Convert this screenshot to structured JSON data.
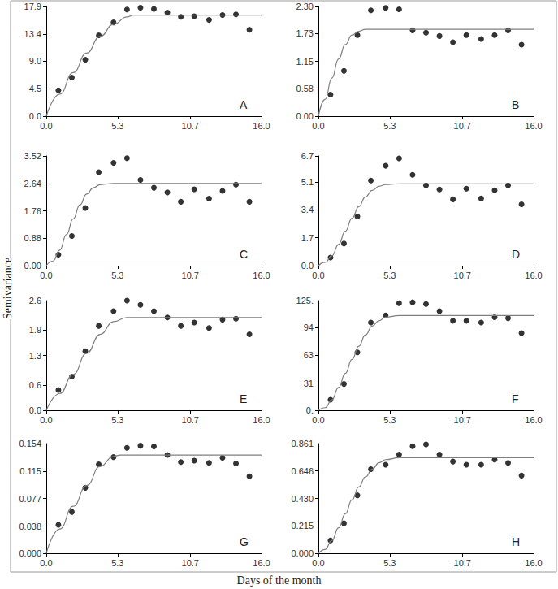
{
  "xlabel": "Days of the month",
  "ylabel": "Semivariance",
  "chart_data": [
    {
      "type": "scatter",
      "title": "A",
      "xlim": [
        0,
        16
      ],
      "xticks": [
        {
          "value": 0,
          "label": "0.0"
        },
        5.3,
        10.7,
        {
          "value": 16,
          "label": "16.0"
        }
      ],
      "ylim": [
        0,
        17.9
      ],
      "yticks": [
        {
          "value": 0,
          "label": "0.0"
        },
        4.5,
        {
          "value": 9,
          "label": "9.0"
        },
        13.4,
        17.9
      ],
      "series": [
        {
          "type": "scatter",
          "color": "#000000",
          "marker": "circle",
          "x": [
            0.9,
            1.9,
            2.9,
            3.9,
            5.0,
            6.0,
            7.0,
            8.0,
            9.0,
            10.0,
            11.0,
            12.1,
            13.1,
            14.1,
            15.1
          ],
          "values": [
            4.2,
            6.3,
            9.2,
            13.2,
            15.3,
            17.4,
            17.7,
            17.5,
            16.9,
            16.2,
            16.3,
            15.7,
            16.5,
            16.6,
            14.1
          ]
        },
        {
          "type": "line",
          "color": "#7f7f7f",
          "line_style": "solid",
          "x": [
            0,
            1,
            2,
            3,
            4,
            5,
            6,
            6.5,
            16
          ],
          "values": [
            0,
            3.6,
            7.1,
            10.3,
            13.0,
            15.0,
            16.2,
            16.5,
            16.5
          ]
        }
      ]
    },
    {
      "type": "scatter",
      "title": "B",
      "xlim": [
        0,
        16
      ],
      "xticks": [
        {
          "value": 0,
          "label": "0.0"
        },
        5.3,
        10.7,
        {
          "value": 16,
          "label": "16.0"
        }
      ],
      "ylim": [
        0,
        2.3
      ],
      "yticks": [
        {
          "value": 0,
          "label": "0.00"
        },
        0.58,
        1.15,
        1.73,
        {
          "value": 2.3,
          "label": "2.30"
        }
      ],
      "series": [
        {
          "type": "scatter",
          "color": "#000000",
          "marker": "circle",
          "x": [
            0.9,
            1.9,
            2.9,
            3.9,
            5.0,
            6.0,
            7.0,
            8.0,
            9.0,
            10.0,
            11.0,
            12.1,
            13.1,
            14.1,
            15.1
          ],
          "values": [
            0.45,
            0.95,
            1.7,
            2.22,
            2.27,
            2.24,
            1.8,
            1.75,
            1.68,
            1.55,
            1.7,
            1.62,
            1.7,
            1.8,
            1.5
          ]
        },
        {
          "type": "line",
          "color": "#7f7f7f",
          "line_style": "solid",
          "x": [
            0,
            0.5,
            1,
            1.5,
            2,
            2.5,
            3,
            3.5,
            16
          ],
          "values": [
            0,
            0.35,
            0.8,
            1.2,
            1.5,
            1.7,
            1.78,
            1.82,
            1.82
          ]
        }
      ]
    },
    {
      "type": "scatter",
      "title": "C",
      "xlim": [
        0,
        16
      ],
      "xticks": [
        {
          "value": 0,
          "label": "0.0"
        },
        5.3,
        10.7,
        {
          "value": 16,
          "label": "16.0"
        }
      ],
      "ylim": [
        0,
        3.52
      ],
      "yticks": [
        {
          "value": 0,
          "label": "0.00"
        },
        0.88,
        1.76,
        2.64,
        3.52
      ],
      "series": [
        {
          "type": "scatter",
          "color": "#000000",
          "marker": "circle",
          "x": [
            0.9,
            1.9,
            2.9,
            3.9,
            5.0,
            6.0,
            7.0,
            8.0,
            9.0,
            10.0,
            11.0,
            12.1,
            13.1,
            14.1,
            15.1
          ],
          "values": [
            0.35,
            0.95,
            1.85,
            3.0,
            3.3,
            3.45,
            2.75,
            2.5,
            2.35,
            2.05,
            2.45,
            2.15,
            2.4,
            2.6,
            2.05
          ]
        },
        {
          "type": "line",
          "color": "#7f7f7f",
          "line_style": "solid",
          "x": [
            0,
            0.5,
            1,
            1.5,
            2,
            2.5,
            3,
            3.5,
            4,
            5,
            16
          ],
          "values": [
            0,
            0.15,
            0.5,
            1.0,
            1.5,
            1.95,
            2.3,
            2.5,
            2.6,
            2.64,
            2.64
          ]
        }
      ]
    },
    {
      "type": "scatter",
      "title": "D",
      "xlim": [
        0,
        16
      ],
      "xticks": [
        {
          "value": 0,
          "label": "0.0"
        },
        5.3,
        10.7,
        {
          "value": 16,
          "label": "16.0"
        }
      ],
      "ylim": [
        0,
        6.7
      ],
      "yticks": [
        {
          "value": 0,
          "label": "0.0"
        },
        1.7,
        3.4,
        5.1,
        6.7
      ],
      "series": [
        {
          "type": "scatter",
          "color": "#000000",
          "marker": "circle",
          "x": [
            0.9,
            1.9,
            2.9,
            3.9,
            5.0,
            6.0,
            7.0,
            8.0,
            9.0,
            10.0,
            11.0,
            12.1,
            13.1,
            14.1,
            15.1
          ],
          "values": [
            0.5,
            1.35,
            3.0,
            5.2,
            6.1,
            6.55,
            5.55,
            4.9,
            4.65,
            4.05,
            4.7,
            4.1,
            4.6,
            4.9,
            3.75
          ]
        },
        {
          "type": "line",
          "color": "#7f7f7f",
          "line_style": "solid",
          "x": [
            0,
            0.5,
            1,
            1.5,
            2,
            2.5,
            3,
            3.5,
            4,
            4.5,
            5,
            6,
            16
          ],
          "values": [
            0,
            0.2,
            0.6,
            1.3,
            2.1,
            2.9,
            3.6,
            4.2,
            4.6,
            4.85,
            4.95,
            5.0,
            5.0
          ]
        }
      ]
    },
    {
      "type": "scatter",
      "title": "E",
      "xlim": [
        0,
        16
      ],
      "xticks": [
        {
          "value": 0,
          "label": "0.0"
        },
        5.3,
        10.7,
        {
          "value": 16,
          "label": "16.0"
        }
      ],
      "ylim": [
        0,
        2.6
      ],
      "yticks": [
        {
          "value": 0,
          "label": "0.0"
        },
        0.6,
        1.3,
        1.9,
        2.6
      ],
      "series": [
        {
          "type": "scatter",
          "color": "#000000",
          "marker": "circle",
          "x": [
            0.9,
            1.9,
            2.9,
            3.9,
            5.0,
            6.0,
            7.0,
            8.0,
            9.0,
            10.0,
            11.0,
            12.1,
            13.1,
            14.1,
            15.1
          ],
          "values": [
            0.48,
            0.8,
            1.4,
            2.0,
            2.35,
            2.6,
            2.5,
            2.35,
            2.2,
            2.0,
            2.08,
            1.95,
            2.15,
            2.17,
            1.8
          ]
        },
        {
          "type": "line",
          "color": "#7f7f7f",
          "line_style": "solid",
          "x": [
            0,
            1,
            2,
            3,
            4,
            5,
            6,
            16
          ],
          "values": [
            0,
            0.4,
            0.85,
            1.35,
            1.8,
            2.1,
            2.2,
            2.2
          ]
        }
      ]
    },
    {
      "type": "scatter",
      "title": "F",
      "xlim": [
        0,
        16
      ],
      "xticks": [
        {
          "value": 0,
          "label": "0.0"
        },
        5.3,
        10.7,
        {
          "value": 16,
          "label": "16.0"
        }
      ],
      "ylim": [
        0,
        125
      ],
      "yticks": [
        {
          "value": 0,
          "label": "0."
        },
        31,
        63,
        94,
        {
          "value": 125,
          "label": "125."
        }
      ],
      "series": [
        {
          "type": "scatter",
          "color": "#000000",
          "marker": "circle",
          "x": [
            0.9,
            1.9,
            2.9,
            3.9,
            5.0,
            6.0,
            7.0,
            8.0,
            9.0,
            10.0,
            11.0,
            12.1,
            13.1,
            14.1,
            15.1
          ],
          "values": [
            12,
            30,
            66,
            100,
            108,
            122,
            123,
            121,
            113,
            102,
            102,
            100,
            106,
            105,
            88
          ]
        },
        {
          "type": "line",
          "color": "#7f7f7f",
          "line_style": "solid",
          "x": [
            0,
            0.5,
            1,
            1.5,
            2,
            2.5,
            3,
            3.5,
            4,
            4.5,
            5,
            6,
            16
          ],
          "values": [
            0,
            3,
            12,
            26,
            42,
            58,
            73,
            86,
            96,
            102,
            106,
            108,
            108
          ]
        }
      ]
    },
    {
      "type": "scatter",
      "title": "G",
      "xlim": [
        0,
        16
      ],
      "xticks": [
        {
          "value": 0,
          "label": "0.0"
        },
        5.3,
        10.7,
        {
          "value": 16,
          "label": "16.0"
        }
      ],
      "ylim": [
        0,
        0.154
      ],
      "yticks": [
        {
          "value": 0,
          "label": "0.000"
        },
        0.038,
        0.077,
        0.115,
        0.154
      ],
      "series": [
        {
          "type": "scatter",
          "color": "#000000",
          "marker": "circle",
          "x": [
            0.9,
            1.9,
            2.9,
            3.9,
            5.0,
            6.0,
            7.0,
            8.0,
            9.0,
            10.0,
            11.0,
            12.1,
            13.1,
            14.1,
            15.1
          ],
          "values": [
            0.04,
            0.058,
            0.092,
            0.125,
            0.135,
            0.148,
            0.151,
            0.15,
            0.138,
            0.128,
            0.13,
            0.127,
            0.134,
            0.126,
            0.108
          ]
        },
        {
          "type": "line",
          "color": "#7f7f7f",
          "line_style": "solid",
          "x": [
            0,
            1,
            2,
            3,
            4,
            5,
            5.5,
            16
          ],
          "values": [
            0,
            0.034,
            0.066,
            0.095,
            0.122,
            0.136,
            0.138,
            0.138
          ]
        }
      ]
    },
    {
      "type": "scatter",
      "title": "H",
      "xlim": [
        0,
        16
      ],
      "xticks": [
        {
          "value": 0,
          "label": "0.0"
        },
        5.3,
        10.7,
        {
          "value": 16,
          "label": "16.0"
        }
      ],
      "ylim": [
        0,
        0.861
      ],
      "yticks": [
        {
          "value": 0,
          "label": "0.000"
        },
        0.215,
        {
          "value": 0.43,
          "label": "0.430"
        },
        0.646,
        0.861
      ],
      "series": [
        {
          "type": "scatter",
          "color": "#000000",
          "marker": "circle",
          "x": [
            0.9,
            1.9,
            2.9,
            3.9,
            5.0,
            6.0,
            7.0,
            8.0,
            9.0,
            10.0,
            11.0,
            12.1,
            13.1,
            14.1,
            15.1
          ],
          "values": [
            0.1,
            0.235,
            0.455,
            0.66,
            0.695,
            0.775,
            0.84,
            0.855,
            0.775,
            0.72,
            0.695,
            0.695,
            0.735,
            0.71,
            0.61
          ]
        },
        {
          "type": "line",
          "color": "#7f7f7f",
          "line_style": "solid",
          "x": [
            0,
            0.5,
            1,
            1.5,
            2,
            2.5,
            3,
            3.5,
            4,
            4.5,
            5,
            6,
            16
          ],
          "values": [
            0,
            0.03,
            0.1,
            0.2,
            0.31,
            0.42,
            0.52,
            0.6,
            0.66,
            0.71,
            0.735,
            0.75,
            0.75
          ]
        }
      ]
    }
  ]
}
